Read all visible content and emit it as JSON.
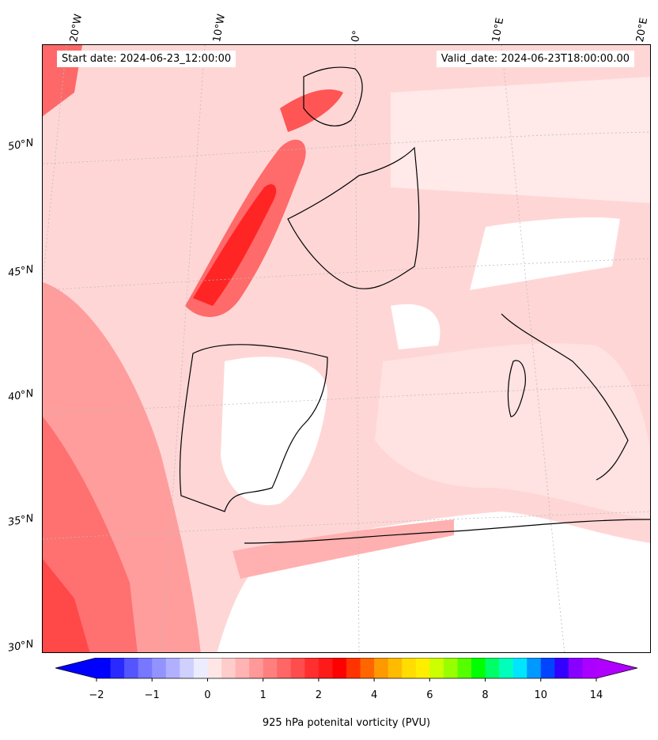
{
  "header": {
    "start_date": "Start date: 2024-06-23_12:00:00",
    "valid_date": "Valid_date: 2024-06-23T18:00:00.00"
  },
  "lon_labels": [
    "20°W",
    "10°W",
    "0°",
    "10°E",
    "20°E"
  ],
  "lat_labels": [
    "50°N",
    "45°N",
    "40°N",
    "35°N",
    "30°N"
  ],
  "colorbar": {
    "label": "925 hPa potenital vorticity (PVU)",
    "tick_labels": [
      "−2",
      "−1",
      "0",
      "1",
      "2",
      "4",
      "6",
      "8",
      "10",
      "14"
    ],
    "colors": [
      "#0000ff",
      "#2a2aff",
      "#5555ff",
      "#7777ff",
      "#9393ff",
      "#b0b0ff",
      "#d0d0ff",
      "#ececff",
      "#ffe6e6",
      "#ffcccc",
      "#ffb3b3",
      "#ff9999",
      "#ff7f7f",
      "#ff6666",
      "#ff4c4c",
      "#ff2f2f",
      "#ff1a1a",
      "#ff0000",
      "#ff3300",
      "#ff6600",
      "#ff9900",
      "#ffbb00",
      "#ffdd00",
      "#ffee00",
      "#ccff00",
      "#99ff00",
      "#55ff00",
      "#00ff00",
      "#00ff66",
      "#00ffbb",
      "#00e5ff",
      "#0099ff",
      "#0044ff",
      "#3300ff",
      "#8800ff",
      "#aa00ff"
    ],
    "under_color": "#0000ff",
    "over_color": "#b000ff"
  },
  "map": {
    "ocean_background": "#ffd2d2",
    "coastline_color": "#000000",
    "gridline_color": "#bbbbbb"
  }
}
